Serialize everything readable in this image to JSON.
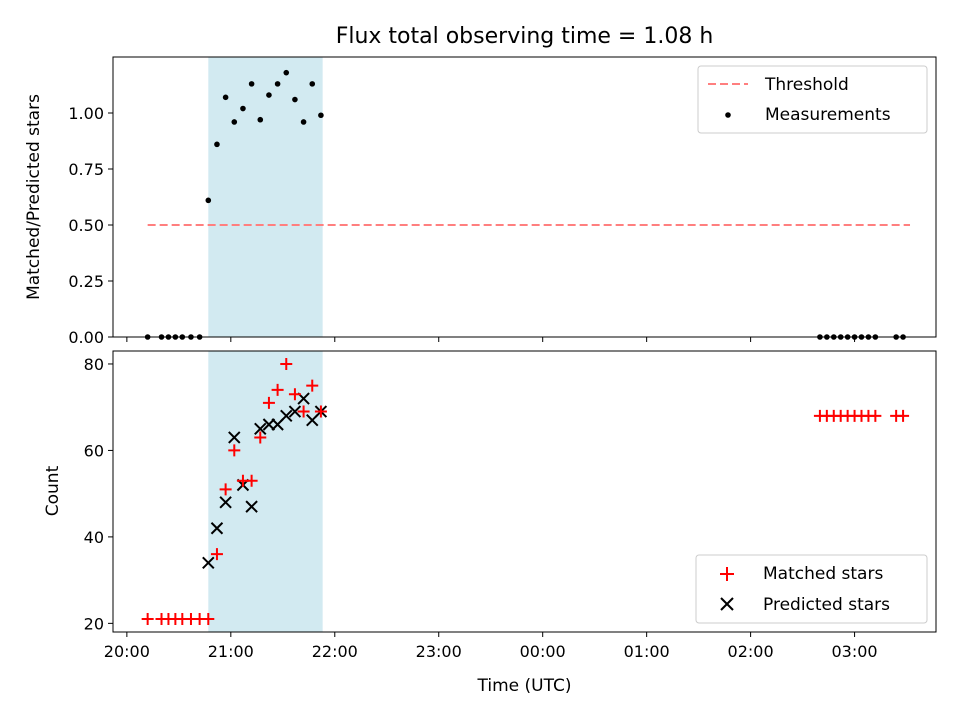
{
  "figure": {
    "title": "Flux total observing time = 1.08 h"
  },
  "x_axis": {
    "label": "Time (UTC)",
    "ticks": [
      {
        "t": 0,
        "label": "20:00"
      },
      {
        "t": 60,
        "label": "21:00"
      },
      {
        "t": 120,
        "label": "22:00"
      },
      {
        "t": 180,
        "label": "23:00"
      },
      {
        "t": 240,
        "label": "00:00"
      },
      {
        "t": 300,
        "label": "01:00"
      },
      {
        "t": 360,
        "label": "02:00"
      },
      {
        "t": 420,
        "label": "03:00"
      }
    ]
  },
  "colors": {
    "threshold": "#ff7f7f",
    "measurements": "#000000",
    "matched": "#ff0000",
    "predicted": "#000000",
    "span": "#add8e6"
  },
  "chart_data": [
    {
      "type": "scatter",
      "ylabel": "Matched/Predicted stars",
      "xlim": [
        "19:52",
        "03:47"
      ],
      "ylim": [
        0,
        1.25
      ],
      "yticks": [
        "0.00",
        "0.25",
        "0.50",
        "0.75",
        "1.00"
      ],
      "shaded_span": [
        "20:47",
        "21:53"
      ],
      "threshold": {
        "name": "Threshold",
        "value": 0.5,
        "x_range": [
          "20:12",
          "03:32"
        ]
      },
      "legend": {
        "location": "upper right",
        "entries": [
          "Threshold",
          "Measurements"
        ]
      },
      "series": [
        {
          "name": "Measurements",
          "x": [
            "20:12",
            "20:20",
            "20:24",
            "20:28",
            "20:32",
            "20:37",
            "20:42",
            "20:47",
            "20:52",
            "20:57",
            "21:02",
            "21:07",
            "21:12",
            "21:17",
            "21:22",
            "21:27",
            "21:32",
            "21:37",
            "21:42",
            "21:47",
            "21:52",
            "02:40",
            "02:44",
            "02:48",
            "02:52",
            "02:56",
            "03:00",
            "03:04",
            "03:08",
            "03:12",
            "03:24",
            "03:28"
          ],
          "y": [
            0,
            0,
            0,
            0,
            0,
            0,
            0,
            0.61,
            0.86,
            1.07,
            0.96,
            1.02,
            1.13,
            0.97,
            1.08,
            1.13,
            1.18,
            1.06,
            0.96,
            1.13,
            0.99,
            0,
            0,
            0,
            0,
            0,
            0,
            0,
            0,
            0,
            0,
            0
          ]
        }
      ]
    },
    {
      "type": "scatter",
      "ylabel": "Count",
      "xlabel": "Time (UTC)",
      "xlim": [
        "19:52",
        "03:47"
      ],
      "ylim": [
        18,
        83
      ],
      "yticks": [
        "20",
        "40",
        "60",
        "80"
      ],
      "shaded_span": [
        "20:47",
        "21:53"
      ],
      "legend": {
        "location": "lower right",
        "entries": [
          "Matched stars",
          "Predicted stars"
        ]
      },
      "series": [
        {
          "name": "Matched stars",
          "marker": "+",
          "x": [
            "20:12",
            "20:20",
            "20:24",
            "20:28",
            "20:32",
            "20:37",
            "20:42",
            "20:47",
            "20:52",
            "20:57",
            "21:02",
            "21:07",
            "21:12",
            "21:17",
            "21:22",
            "21:27",
            "21:32",
            "21:37",
            "21:42",
            "21:47",
            "21:52",
            "02:40",
            "02:44",
            "02:48",
            "02:52",
            "02:56",
            "03:00",
            "03:04",
            "03:08",
            "03:12",
            "03:24",
            "03:28"
          ],
          "y": [
            21,
            21,
            21,
            21,
            21,
            21,
            21,
            21,
            36,
            51,
            60,
            53,
            53,
            63,
            71,
            74,
            80,
            73,
            69,
            75,
            69,
            68,
            68,
            68,
            68,
            68,
            68,
            68,
            68,
            68,
            68,
            68
          ]
        },
        {
          "name": "Predicted stars",
          "marker": "x",
          "x": [
            "20:47",
            "20:52",
            "20:57",
            "21:02",
            "21:07",
            "21:12",
            "21:17",
            "21:22",
            "21:27",
            "21:32",
            "21:37",
            "21:42",
            "21:47",
            "21:52"
          ],
          "y": [
            34,
            42,
            48,
            63,
            52,
            47,
            65,
            66,
            66,
            68,
            69,
            72,
            67,
            69
          ]
        }
      ]
    }
  ]
}
